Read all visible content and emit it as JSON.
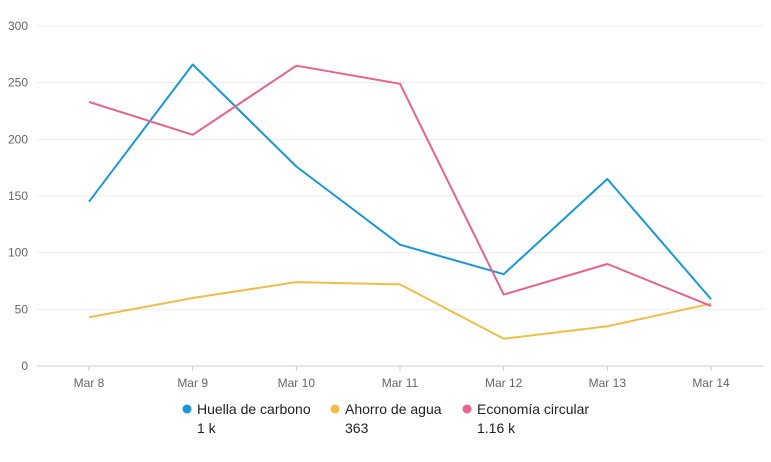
{
  "chart_data": {
    "type": "line",
    "title": "",
    "xlabel": "",
    "ylabel": "",
    "categories": [
      "Mar 8",
      "Mar 9",
      "Mar 10",
      "Mar 11",
      "Mar 12",
      "Mar 13",
      "Mar 14"
    ],
    "ylim": [
      0,
      300
    ],
    "yticks": [
      0,
      50,
      100,
      150,
      200,
      250,
      300
    ],
    "grid": true,
    "legend": "bottom",
    "series": [
      {
        "name": "Huella de carbono",
        "total": "1 k",
        "color": "#1a97d9",
        "values": [
          145,
          266,
          176,
          107,
          81,
          165,
          59
        ]
      },
      {
        "name": "Ahorro de agua",
        "total": "363",
        "color": "#f2bc4a",
        "values": [
          43,
          60,
          74,
          72,
          24,
          35,
          55
        ]
      },
      {
        "name": "Economía circular",
        "total": "1.16 k",
        "color": "#e8628e",
        "values": [
          233,
          204,
          265,
          249,
          63,
          90,
          53
        ]
      }
    ]
  }
}
